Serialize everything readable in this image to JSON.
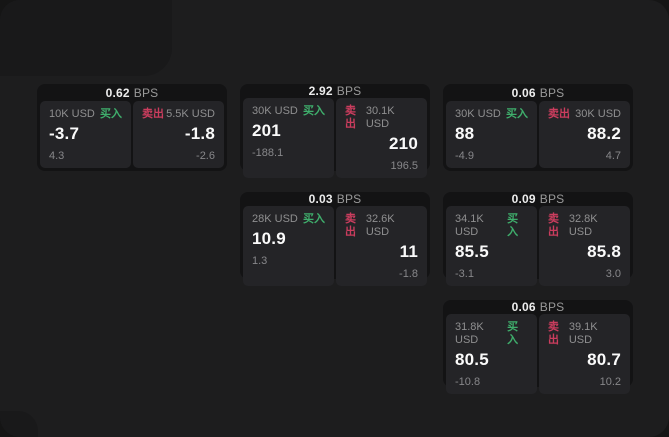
{
  "labels": {
    "bps_unit": "BPS",
    "buy": "买入",
    "sell": "卖出"
  },
  "colors": {
    "window_bg": "#1d1d1e",
    "card_bg": "#131314",
    "pane_bg": "#242427",
    "buy_accent": "#3fae6c",
    "sell_accent": "#cb3d5e",
    "value_text": "#fafafa",
    "muted_text": "#8f8f90"
  },
  "cards": [
    {
      "bps": "0.62",
      "buy": {
        "amount": "10K USD",
        "value": "-3.7",
        "sub": "4.3"
      },
      "sell": {
        "amount": "5.5K USD",
        "value": "-1.8",
        "sub": "-2.6"
      }
    },
    {
      "bps": "2.92",
      "buy": {
        "amount": "30K USD",
        "value": "201",
        "sub": "-188.1"
      },
      "sell": {
        "amount": "30.1K USD",
        "value": "210",
        "sub": "196.5"
      }
    },
    {
      "bps": "0.06",
      "buy": {
        "amount": "30K USD",
        "value": "88",
        "sub": "-4.9"
      },
      "sell": {
        "amount": "30K USD",
        "value": "88.2",
        "sub": "4.7"
      }
    },
    {
      "bps": "0.03",
      "buy": {
        "amount": "28K USD",
        "value": "10.9",
        "sub": "1.3"
      },
      "sell": {
        "amount": "32.6K USD",
        "value": "11",
        "sub": "-1.8"
      }
    },
    {
      "bps": "0.09",
      "buy": {
        "amount": "34.1K USD",
        "value": "85.5",
        "sub": "-3.1"
      },
      "sell": {
        "amount": "32.8K USD",
        "value": "85.8",
        "sub": "3.0"
      }
    },
    {
      "bps": "0.06",
      "buy": {
        "amount": "31.8K USD",
        "value": "80.5",
        "sub": "-10.8"
      },
      "sell": {
        "amount": "39.1K USD",
        "value": "80.7",
        "sub": "10.2"
      }
    }
  ]
}
